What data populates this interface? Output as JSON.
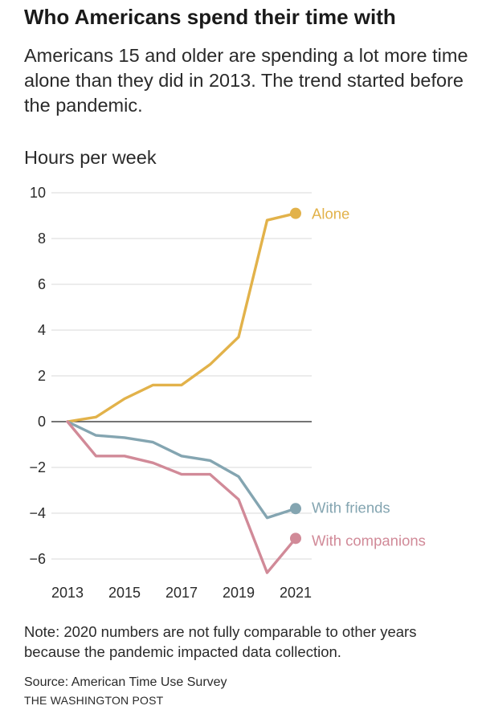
{
  "header": {
    "title": "Who Americans spend their time with",
    "subtitle": "Americans 15 and older are spending a lot more time alone than they did in 2013. The trend started before the pandemic."
  },
  "footer": {
    "note": "Note: 2020 numbers are not fully comparable to other years because the pandemic impacted data collection.",
    "source": "Source: American Time Use Survey",
    "credit": "THE WASHINGTON POST"
  },
  "chart_data": {
    "type": "line",
    "title": "Who Americans spend their time with",
    "ylabel": "Hours per week",
    "xlabel": "",
    "x": [
      2013,
      2014,
      2015,
      2016,
      2017,
      2018,
      2019,
      2020,
      2021
    ],
    "xticks": [
      "2013",
      "2015",
      "2017",
      "2019",
      "2021"
    ],
    "yticks": [
      "10",
      "8",
      "6",
      "4",
      "2",
      "0",
      "−2",
      "−4",
      "−6"
    ],
    "ylim": [
      -7,
      10
    ],
    "grid": true,
    "series": [
      {
        "name": "Alone",
        "color": "#e2b24a",
        "values": [
          0,
          0.2,
          1.0,
          1.6,
          1.6,
          2.5,
          3.7,
          8.8,
          9.1
        ]
      },
      {
        "name": "With friends",
        "color": "#84a5b1",
        "values": [
          0,
          -0.6,
          -0.7,
          -0.9,
          -1.5,
          -1.7,
          -2.4,
          -4.2,
          -3.8
        ]
      },
      {
        "name": "With companions",
        "color": "#d18a98",
        "values": [
          0,
          -1.5,
          -1.5,
          -1.8,
          -2.3,
          -2.3,
          -3.4,
          -6.6,
          -5.1
        ]
      }
    ]
  }
}
